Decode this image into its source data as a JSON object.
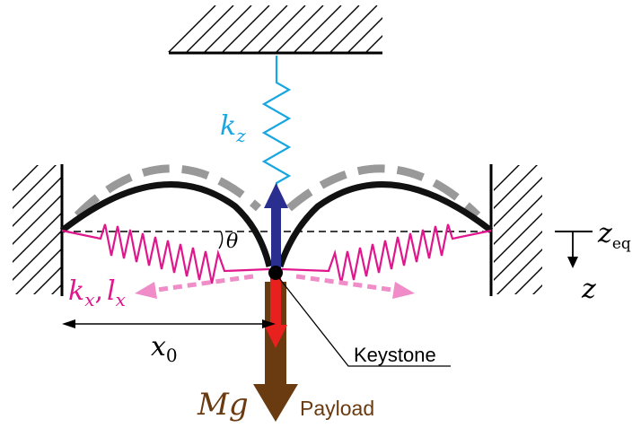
{
  "labels": {
    "kz": "kz",
    "kz_base": "k",
    "kz_sub": "z",
    "kx_lx_1": "k",
    "kx_lx_1_sub": "x",
    "kx_lx_sep": ",",
    "kx_lx_2": "l",
    "kx_lx_2_sub": "x",
    "theta": "θ",
    "x0_base": "x",
    "x0_sub": "0",
    "zeq_base": "z",
    "zeq_sub": "eq",
    "z": "z",
    "mg": "Mg",
    "payload": "Payload",
    "keystone": "Keystone"
  },
  "colors": {
    "spring_vertical": "#1aa6e0",
    "spring_horizontal": "#e0168c",
    "spring_horizontal_force": "#f08cc8",
    "blade": "#111111",
    "blade_ghost": "#999999",
    "arrow_up": "#2a2f8f",
    "arrow_down_red": "#e8201e",
    "arrow_payload": "#6a3a10"
  }
}
